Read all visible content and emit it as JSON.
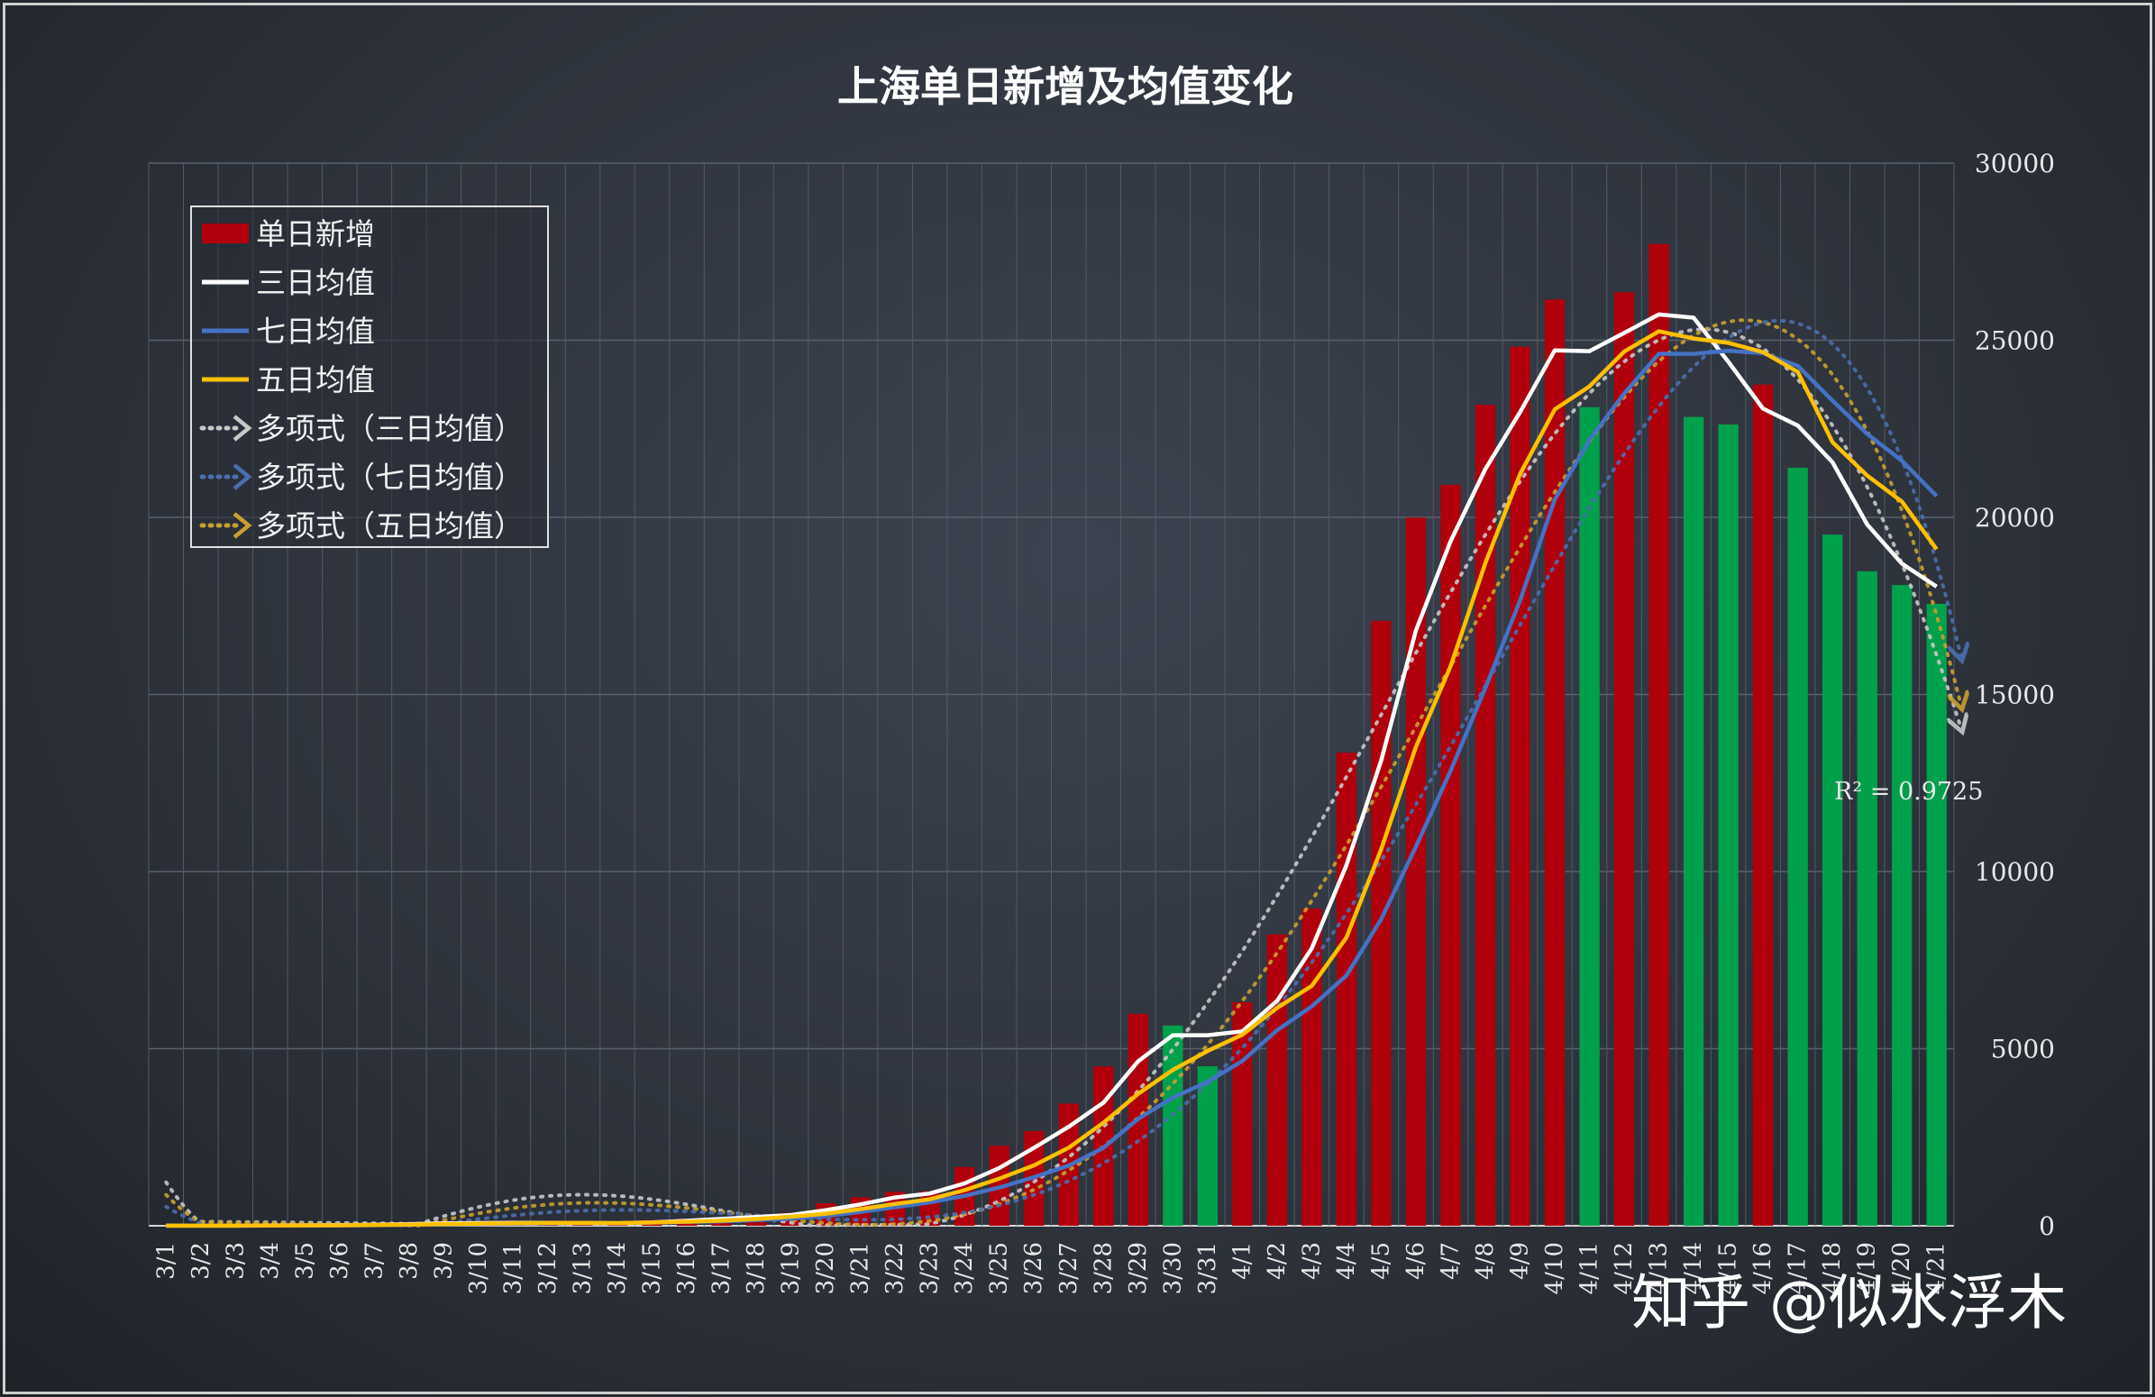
{
  "chart_data": {
    "type": "bar",
    "title": "上海单日新增及均值变化",
    "categories": [
      "3/1",
      "3/2",
      "3/3",
      "3/4",
      "3/5",
      "3/6",
      "3/7",
      "3/8",
      "3/9",
      "3/10",
      "3/11",
      "3/12",
      "3/13",
      "3/14",
      "3/15",
      "3/16",
      "3/17",
      "3/18",
      "3/19",
      "3/20",
      "3/21",
      "3/22",
      "3/23",
      "3/24",
      "3/25",
      "3/26",
      "3/27",
      "3/28",
      "3/29",
      "3/30",
      "3/31",
      "4/1",
      "4/2",
      "4/3",
      "4/4",
      "4/5",
      "4/6",
      "4/7",
      "4/8",
      "4/9",
      "4/10",
      "4/11",
      "4/12",
      "4/13",
      "4/14",
      "4/15",
      "4/16",
      "4/17",
      "4/18",
      "4/19",
      "4/20",
      "4/21"
    ],
    "ylim": [
      0,
      30000
    ],
    "yticks": [
      0,
      5000,
      10000,
      15000,
      20000,
      25000,
      30000
    ],
    "y_axis_position": "right",
    "grid": true,
    "legend_position": "top-left",
    "bar_colors": {
      "increase": "#b0000c",
      "decrease": "#00a14b"
    },
    "bar_color_by_category": [
      "red",
      "red",
      "red",
      "red",
      "red",
      "red",
      "red",
      "red",
      "red",
      "red",
      "red",
      "red",
      "red",
      "red",
      "red",
      "red",
      "red",
      "red",
      "red",
      "red",
      "red",
      "red",
      "red",
      "red",
      "red",
      "red",
      "red",
      "red",
      "red",
      "green",
      "green",
      "red",
      "red",
      "red",
      "red",
      "red",
      "red",
      "red",
      "red",
      "red",
      "red",
      "green",
      "red",
      "red",
      "green",
      "green",
      "red",
      "green",
      "green",
      "green",
      "green",
      "green"
    ],
    "series": [
      {
        "name": "单日新增",
        "type": "bar",
        "color": "#b0000c",
        "values": [
          2,
          4,
          3,
          19,
          17,
          17,
          53,
          62,
          79,
          86,
          82,
          87,
          67,
          61,
          158,
          202,
          223,
          317,
          370,
          635,
          804,
          957,
          975,
          1659,
          2262,
          2676,
          3449,
          4499,
          5982,
          5653,
          4502,
          6313,
          8226,
          8957,
          13356,
          17077,
          19991,
          20917,
          23176,
          24815,
          26152,
          23110,
          26354,
          27719,
          22834,
          22623,
          23749,
          21399,
          19513,
          18477,
          18090,
          17559
        ]
      },
      {
        "name": "三日均值",
        "type": "line",
        "color": "#ffffff",
        "values": [
          2,
          3,
          3,
          9,
          13,
          18,
          29,
          44,
          65,
          76,
          82,
          85,
          79,
          72,
          95,
          140,
          194,
          247,
          303,
          441,
          603,
          799,
          912,
          1197,
          1632,
          2199,
          2796,
          3475,
          4643,
          5378,
          5379,
          5489,
          6347,
          7832,
          10180,
          13130,
          16808,
          19328,
          21361,
          22969,
          24714,
          24692,
          25205,
          25728,
          25636,
          24392,
          23069,
          22590,
          21554,
          19796,
          18693,
          18042
        ]
      },
      {
        "name": "七日均值",
        "type": "line",
        "color": "#4472c4",
        "values": [
          2,
          3,
          3,
          7,
          9,
          11,
          16,
          25,
          36,
          48,
          57,
          67,
          74,
          75,
          89,
          106,
          125,
          159,
          200,
          276,
          387,
          523,
          661,
          845,
          1080,
          1372,
          1700,
          2201,
          3018,
          3618,
          4062,
          4651,
          5519,
          6191,
          7066,
          8654,
          10703,
          12848,
          15180,
          17652,
          20498,
          22183,
          23498,
          24619,
          24617,
          24704,
          24633,
          24275,
          23295,
          22354,
          21597,
          20600
        ]
      },
      {
        "name": "五日均值",
        "type": "line",
        "color": "#ffc000",
        "values": [
          2,
          3,
          3,
          5,
          9,
          12,
          22,
          34,
          46,
          59,
          72,
          79,
          80,
          77,
          91,
          115,
          142,
          192,
          254,
          341,
          470,
          617,
          748,
          1006,
          1331,
          1706,
          2204,
          2909,
          3726,
          4400,
          4935,
          5392,
          6150,
          6770,
          8137,
          10626,
          13521,
          15800,
          18708,
          21221,
          23047,
          23698,
          24680,
          25252,
          25048,
          24925,
          24663,
          24104,
          22123,
          21178,
          20445,
          19098
        ]
      },
      {
        "name": "多项式（三日均值）",
        "type": "line",
        "style": "dotted",
        "color": "#c8c8c8",
        "r_squared": "R² = 0.9725"
      },
      {
        "name": "多项式（七日均值）",
        "type": "line",
        "style": "dotted",
        "color": "#4a6fb0"
      },
      {
        "name": "多项式（五日均值）",
        "type": "line",
        "style": "dotted",
        "color": "#c8a030"
      }
    ],
    "annotations": [
      "R² = 0.9725"
    ],
    "watermark": "知乎 @似水浮木"
  }
}
